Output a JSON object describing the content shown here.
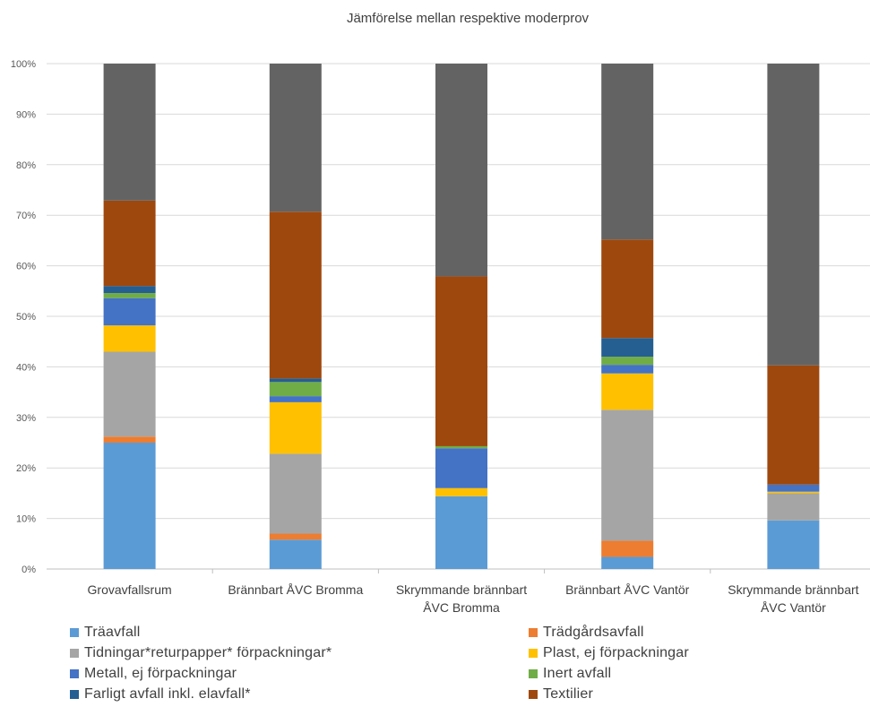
{
  "chart_data": {
    "type": "bar",
    "stacked": true,
    "normalized": true,
    "title": "Jämförelse mellan respektive moderprov",
    "xlabel": "",
    "ylabel": "",
    "ylim": [
      0,
      100
    ],
    "yticks": [
      "0%",
      "10%",
      "20%",
      "30%",
      "40%",
      "50%",
      "60%",
      "70%",
      "80%",
      "90%",
      "100%"
    ],
    "grid": true,
    "legend_position": "bottom",
    "categories": [
      [
        "Grovavfallsrum"
      ],
      [
        "Brännbart ÅVC Bromma"
      ],
      [
        "Skrymmande brännbart",
        "ÅVC Bromma"
      ],
      [
        "Brännbart ÅVC Vantör"
      ],
      [
        "Skrymmande brännbart",
        "ÅVC Vantör"
      ]
    ],
    "series": [
      {
        "name": "Träavfall",
        "color": "#5B9BD5",
        "values": [
          25.0,
          5.8,
          14.4,
          2.4,
          9.6
        ]
      },
      {
        "name": "Trädgårdsavfall",
        "color": "#ED7D31",
        "values": [
          1.2,
          1.2,
          0.0,
          3.2,
          0.0
        ]
      },
      {
        "name": "Tidningar*returpapper* förpackningar*",
        "color": "#A5A5A5",
        "values": [
          16.8,
          15.8,
          0.0,
          25.9,
          5.4
        ]
      },
      {
        "name": "Plast, ej förpackningar",
        "color": "#FFC000",
        "values": [
          5.2,
          10.2,
          1.6,
          7.2,
          0.3
        ]
      },
      {
        "name": "Metall, ej förpackningar",
        "color": "#4472C4",
        "values": [
          5.4,
          1.2,
          7.9,
          1.7,
          1.4
        ]
      },
      {
        "name": "Inert avfall",
        "color": "#70AD47",
        "values": [
          1.0,
          2.8,
          0.4,
          1.6,
          0.0
        ]
      },
      {
        "name": "Farligt avfall inkl. elavfall*",
        "color": "#255E91",
        "values": [
          1.4,
          0.7,
          0.0,
          3.7,
          0.0
        ]
      },
      {
        "name": "Textilier",
        "color": "#9E480E",
        "values": [
          16.9,
          33.0,
          33.6,
          19.5,
          23.6
        ]
      },
      {
        "name": "",
        "color": "#636363",
        "values": [
          27.1,
          29.3,
          42.1,
          34.8,
          59.7
        ]
      }
    ]
  }
}
